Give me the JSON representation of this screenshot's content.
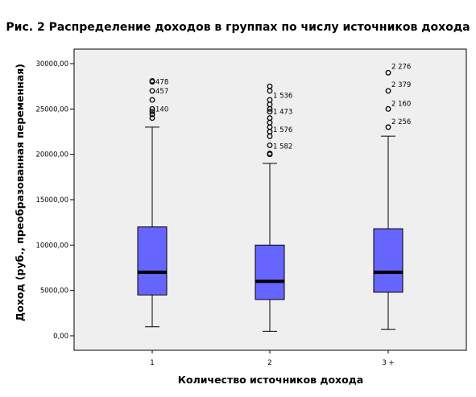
{
  "chart_data": {
    "type": "boxplot",
    "title": "Рис. 2 Распределение доходов в группах по числу источников дохода",
    "xlabel": "Количество источников дохода",
    "ylabel": "Доход (руб., преобразованная переменная)",
    "ylim": [
      0,
      30000
    ],
    "y_ticks": [
      0,
      5000,
      10000,
      15000,
      20000,
      25000,
      30000
    ],
    "y_tick_labels": [
      "0,00",
      "5000,00",
      "10000,00",
      "15000,00",
      "20000,00",
      "25000,00",
      "30000,00"
    ],
    "categories": [
      "1",
      "2",
      "3 +"
    ],
    "grid": false,
    "box_color": "#6666ff",
    "plot_background": "#efefef",
    "boxes": [
      {
        "category": "1",
        "whisker_low": 1000,
        "q1": 4500,
        "median": 7000,
        "q3": 12000,
        "whisker_high": 23000,
        "outliers": [
          24000,
          24400,
          24700,
          25000,
          26000,
          27000,
          28000,
          28100
        ],
        "outlier_labels": [
          {
            "y": 28000,
            "text": "478"
          },
          {
            "y": 27000,
            "text": "457"
          },
          {
            "y": 25000,
            "text": "140"
          }
        ]
      },
      {
        "category": "2",
        "whisker_low": 500,
        "q1": 4000,
        "median": 6000,
        "q3": 10000,
        "whisker_high": 19000,
        "outliers": [
          20000,
          20100,
          21000,
          22000,
          22500,
          23000,
          23500,
          24000,
          24700,
          25000,
          25500,
          26000,
          27000,
          27500
        ],
        "outlier_labels": [
          {
            "y": 26500,
            "text": "1 536"
          },
          {
            "y": 24700,
            "text": "1 473"
          },
          {
            "y": 22700,
            "text": "1 576"
          },
          {
            "y": 20900,
            "text": "1 582"
          }
        ]
      },
      {
        "category": "3 +",
        "whisker_low": 700,
        "q1": 4800,
        "median": 7000,
        "q3": 11800,
        "whisker_high": 22000,
        "outliers": [
          29000,
          27000,
          25000,
          23000
        ],
        "outlier_labels": [
          {
            "y": 29700,
            "text": "2 276"
          },
          {
            "y": 27700,
            "text": "2 379"
          },
          {
            "y": 25600,
            "text": "2 160"
          },
          {
            "y": 23600,
            "text": "2 256"
          }
        ]
      }
    ]
  }
}
